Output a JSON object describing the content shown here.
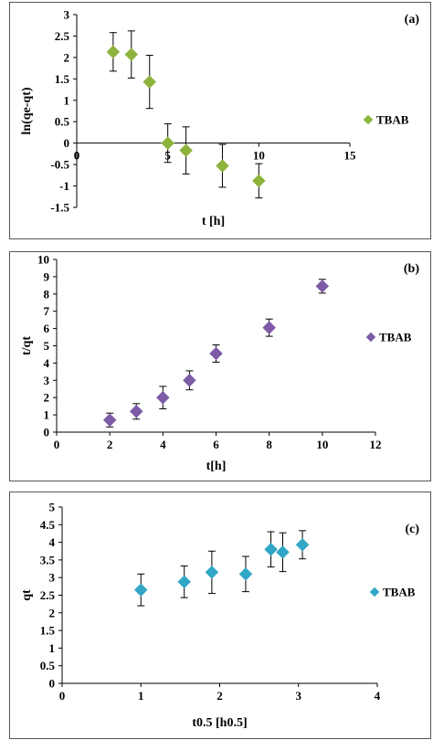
{
  "chart_data": [
    {
      "type": "scatter",
      "panel_label": "(a)",
      "xlabel": "t [h]",
      "ylabel": "ln(qe-qt)",
      "xlim": [
        0,
        15
      ],
      "ylim": [
        -1.5,
        3
      ],
      "xticks": [
        "0",
        "5",
        "10",
        "15"
      ],
      "yticks": [
        "-1.5",
        "-1",
        "-0.5",
        "0",
        "0.5",
        "1",
        "1.5",
        "2",
        "2.5",
        "3"
      ],
      "x_axis_at_zero": true,
      "legend_position": "right",
      "grid": false,
      "series": [
        {
          "name": "TBAB",
          "color": "#8DB33C",
          "marker": "diamond",
          "x": [
            2,
            3,
            4,
            5,
            6,
            8,
            10
          ],
          "y": [
            2.13,
            2.07,
            1.43,
            0.0,
            -0.17,
            -0.53,
            -0.88
          ],
          "err": [
            0.45,
            0.55,
            0.62,
            0.45,
            0.55,
            0.5,
            0.4
          ]
        }
      ]
    },
    {
      "type": "scatter",
      "panel_label": "(b)",
      "xlabel": "t[h]",
      "ylabel": "t/qt",
      "xlim": [
        0,
        12
      ],
      "ylim": [
        0,
        10
      ],
      "xticks": [
        "0",
        "2",
        "4",
        "6",
        "8",
        "10",
        "12"
      ],
      "yticks": [
        "0",
        "1",
        "2",
        "3",
        "4",
        "5",
        "6",
        "7",
        "8",
        "9",
        "10"
      ],
      "x_axis_at_zero": false,
      "legend_position": "right",
      "grid": false,
      "series": [
        {
          "name": "TBAB",
          "color": "#7D5BA6",
          "marker": "diamond",
          "x": [
            2,
            3,
            4,
            5,
            6,
            8,
            10
          ],
          "y": [
            0.7,
            1.2,
            2.0,
            3.0,
            4.55,
            6.05,
            8.45
          ],
          "err": [
            0.4,
            0.45,
            0.65,
            0.55,
            0.5,
            0.5,
            0.4
          ]
        }
      ]
    },
    {
      "type": "scatter",
      "panel_label": "(c)",
      "xlabel": "t0.5 [h0.5]",
      "ylabel": "qt",
      "xlim": [
        0,
        4
      ],
      "ylim": [
        0,
        5
      ],
      "xticks": [
        "0",
        "1",
        "2",
        "3",
        "4"
      ],
      "yticks": [
        "0",
        "0.5",
        "1",
        "1.5",
        "2",
        "2.5",
        "3",
        "3.5",
        "4",
        "4.5",
        "5"
      ],
      "x_axis_at_zero": false,
      "legend_position": "right",
      "grid": false,
      "series": [
        {
          "name": "TBAB",
          "color": "#31A6C7",
          "marker": "diamond",
          "x": [
            1.0,
            1.55,
            1.9,
            2.33,
            2.65,
            2.8,
            3.05
          ],
          "y": [
            2.65,
            2.88,
            3.15,
            3.1,
            3.8,
            3.72,
            3.93
          ],
          "err": [
            0.45,
            0.45,
            0.6,
            0.5,
            0.5,
            0.55,
            0.4
          ]
        }
      ]
    }
  ]
}
